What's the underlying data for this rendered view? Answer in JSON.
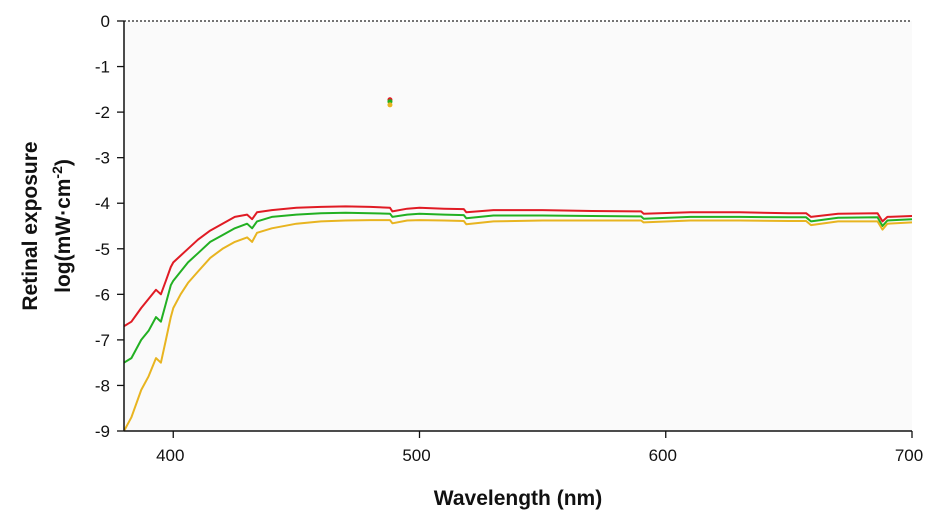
{
  "chart_data": {
    "type": "line",
    "title": "",
    "xlabel": "Wavelength (nm)",
    "ylabel_line1": "Retinal exposure",
    "ylabel_line2_prefix": "log(mW·cm",
    "ylabel_line2_sup": "-2",
    "ylabel_line2_suffix": ")",
    "xlim": [
      380,
      700
    ],
    "ylim": [
      -9,
      0
    ],
    "xticks": [
      400,
      500,
      600,
      700
    ],
    "yticks": [
      0,
      -1,
      -2,
      -3,
      -4,
      -5,
      -6,
      -7,
      -8,
      -9
    ],
    "reference_line": {
      "y": 0,
      "style": "dotted"
    },
    "grid": false,
    "legend": "none",
    "colors": {
      "red": "#e01b24",
      "green": "#22b022",
      "yellow": "#e8b420",
      "background": "#fafafa"
    },
    "series": [
      {
        "color": "red",
        "x": [
          380,
          383,
          387,
          390,
          393,
          395,
          397,
          399,
          400,
          403,
          406,
          410,
          415,
          420,
          425,
          430,
          432,
          434,
          440,
          450,
          460,
          470,
          480,
          488,
          489,
          495,
          500,
          510,
          518,
          519,
          530,
          550,
          570,
          590,
          591,
          610,
          630,
          650,
          657,
          659,
          670,
          686,
          688,
          690,
          700
        ],
        "y": [
          -6.7,
          -6.6,
          -6.3,
          -6.1,
          -5.9,
          -6.0,
          -5.7,
          -5.4,
          -5.3,
          -5.15,
          -5.0,
          -4.8,
          -4.6,
          -4.45,
          -4.3,
          -4.25,
          -4.35,
          -4.2,
          -4.15,
          -4.1,
          -4.08,
          -4.07,
          -4.08,
          -4.1,
          -4.18,
          -4.12,
          -4.1,
          -4.12,
          -4.13,
          -4.2,
          -4.15,
          -4.15,
          -4.17,
          -4.18,
          -4.23,
          -4.2,
          -4.2,
          -4.22,
          -4.22,
          -4.3,
          -4.23,
          -4.22,
          -4.4,
          -4.3,
          -4.28
        ]
      },
      {
        "color": "green",
        "x": [
          380,
          383,
          387,
          390,
          393,
          395,
          397,
          399,
          400,
          403,
          406,
          410,
          415,
          420,
          425,
          430,
          432,
          434,
          440,
          450,
          460,
          470,
          480,
          488,
          489,
          495,
          500,
          510,
          518,
          519,
          530,
          550,
          570,
          590,
          591,
          610,
          630,
          650,
          657,
          659,
          670,
          686,
          688,
          690,
          700
        ],
        "y": [
          -7.5,
          -7.4,
          -7.0,
          -6.8,
          -6.5,
          -6.6,
          -6.2,
          -5.8,
          -5.7,
          -5.5,
          -5.3,
          -5.1,
          -4.85,
          -4.7,
          -4.55,
          -4.45,
          -4.55,
          -4.4,
          -4.3,
          -4.25,
          -4.22,
          -4.21,
          -4.22,
          -4.23,
          -4.3,
          -4.25,
          -4.23,
          -4.25,
          -4.26,
          -4.33,
          -4.27,
          -4.27,
          -4.28,
          -4.29,
          -4.34,
          -4.3,
          -4.3,
          -4.31,
          -4.31,
          -4.4,
          -4.32,
          -4.31,
          -4.5,
          -4.38,
          -4.35
        ]
      },
      {
        "color": "yellow",
        "x": [
          380,
          383,
          387,
          390,
          393,
          395,
          397,
          399,
          400,
          403,
          406,
          410,
          415,
          420,
          425,
          430,
          432,
          434,
          440,
          450,
          460,
          470,
          480,
          488,
          489,
          495,
          500,
          510,
          518,
          519,
          530,
          550,
          570,
          590,
          591,
          610,
          630,
          650,
          657,
          659,
          670,
          686,
          688,
          690,
          700
        ],
        "y": [
          -9.0,
          -8.7,
          -8.1,
          -7.8,
          -7.4,
          -7.5,
          -7.0,
          -6.5,
          -6.3,
          -6.0,
          -5.75,
          -5.5,
          -5.2,
          -5.0,
          -4.85,
          -4.75,
          -4.85,
          -4.65,
          -4.55,
          -4.45,
          -4.4,
          -4.38,
          -4.37,
          -4.37,
          -4.44,
          -4.38,
          -4.37,
          -4.38,
          -4.39,
          -4.46,
          -4.4,
          -4.38,
          -4.38,
          -4.38,
          -4.42,
          -4.38,
          -4.38,
          -4.39,
          -4.39,
          -4.48,
          -4.4,
          -4.4,
          -4.58,
          -4.45,
          -4.42
        ]
      }
    ],
    "markers": [
      {
        "color": "red",
        "x": 488,
        "y": -1.73
      },
      {
        "color": "green",
        "x": 488,
        "y": -1.77
      },
      {
        "color": "yellow",
        "x": 488,
        "y": -1.84
      }
    ]
  }
}
